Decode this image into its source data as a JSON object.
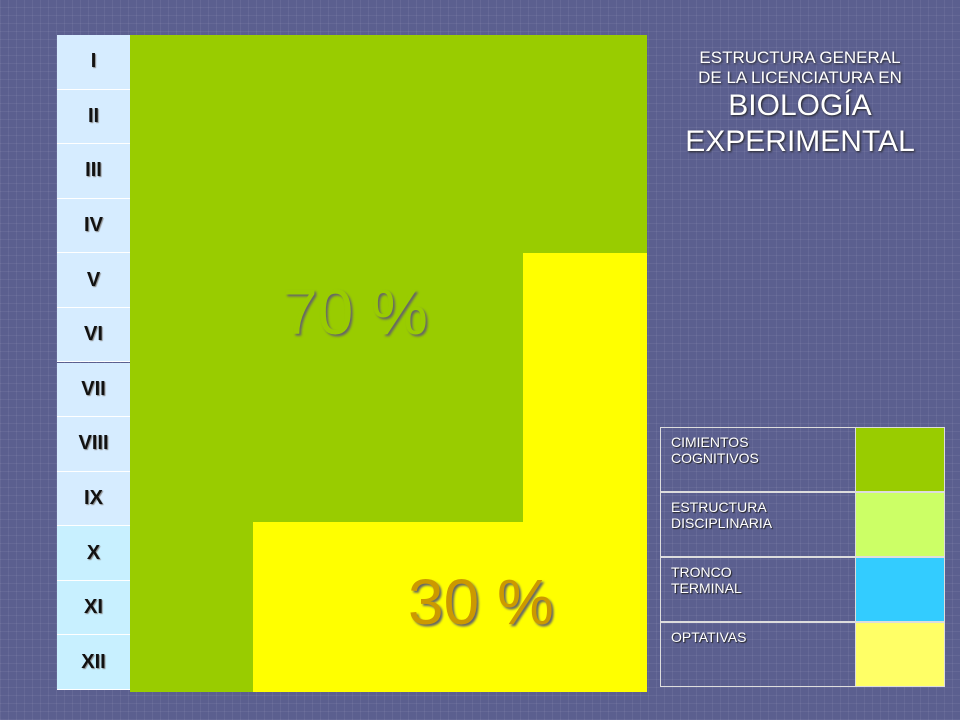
{
  "semesters": [
    "I",
    "II",
    "III",
    "IV",
    "V",
    "VI",
    "VII",
    "VIII",
    "IX",
    "X",
    "XI",
    "XII"
  ],
  "blocks": {
    "core": "70 %",
    "disciplinary": "30 %"
  },
  "title": {
    "lines": [
      "ESTRUCTURA GENERAL",
      "DE LA LICENCIATURA EN",
      "BIOLOGÍA",
      "EXPERIMENTAL"
    ]
  },
  "legend": [
    {
      "label": "CIMIENTOS COGNITIVOS"
    },
    {
      "label": "ESTRUCTURA DISCIPLINARIA"
    },
    {
      "label": "TRONCO TERMINAL"
    },
    {
      "label": "OPTATIVAS"
    }
  ]
}
